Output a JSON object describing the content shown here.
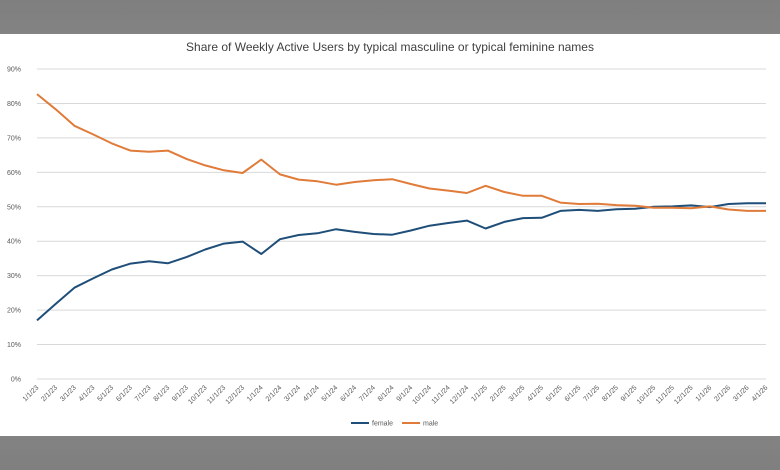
{
  "chart_data": {
    "type": "line",
    "title": "Share of Weekly Active Users by typical masculine or typical feminine names",
    "xlabel": "",
    "ylabel": "",
    "ylim": [
      0,
      90
    ],
    "y_ticks": [
      "0%",
      "10%",
      "20%",
      "30%",
      "40%",
      "50%",
      "60%",
      "70%",
      "80%",
      "90%"
    ],
    "y_tick_values": [
      0,
      10,
      20,
      30,
      40,
      50,
      60,
      70,
      80,
      90
    ],
    "grid": "horizontal",
    "legend_position": "bottom",
    "categories": [
      "1/1/23",
      "2/1/23",
      "3/1/23",
      "4/1/23",
      "5/1/23",
      "6/1/23",
      "7/1/23",
      "8/1/23",
      "9/1/23",
      "10/1/23",
      "11/1/23",
      "12/1/23",
      "1/1/24",
      "2/1/24",
      "3/1/24",
      "4/1/24",
      "5/1/24",
      "6/1/24",
      "7/1/24",
      "8/1/24",
      "9/1/24",
      "10/1/24",
      "11/1/24",
      "12/1/24",
      "1/1/25",
      "2/1/25",
      "3/1/25",
      "4/1/25",
      "5/1/25",
      "6/1/25",
      "7/1/25",
      "8/1/25",
      "9/1/25",
      "10/1/25",
      "11/1/25",
      "12/1/25",
      "1/1/26",
      "2/1/26",
      "3/1/26",
      "4/1/26"
    ],
    "series": [
      {
        "name": "female",
        "color": "#1f4e79",
        "values": [
          17.0,
          21.8,
          26.5,
          29.2,
          31.8,
          33.5,
          34.2,
          33.6,
          35.4,
          37.6,
          39.3,
          39.9,
          36.3,
          40.6,
          41.8,
          42.3,
          43.5,
          42.7,
          42.1,
          41.9,
          43.1,
          44.5,
          45.3,
          46.0,
          43.7,
          45.6,
          46.7,
          46.8,
          48.8,
          49.1,
          48.8,
          49.3,
          49.4,
          50.0,
          50.1,
          50.4,
          49.9,
          50.8,
          51.0,
          51.0
        ]
      },
      {
        "name": "male",
        "color": "#e07b39",
        "values": [
          82.7,
          78.3,
          73.5,
          71.0,
          68.4,
          66.3,
          66.0,
          66.3,
          63.9,
          62.0,
          60.6,
          59.8,
          63.7,
          59.4,
          57.9,
          57.4,
          56.4,
          57.2,
          57.7,
          58.0,
          56.6,
          55.3,
          54.7,
          54.0,
          56.1,
          54.3,
          53.2,
          53.2,
          51.2,
          50.8,
          50.9,
          50.5,
          50.3,
          49.7,
          49.7,
          49.6,
          50.1,
          49.2,
          48.8,
          48.8
        ]
      }
    ]
  }
}
